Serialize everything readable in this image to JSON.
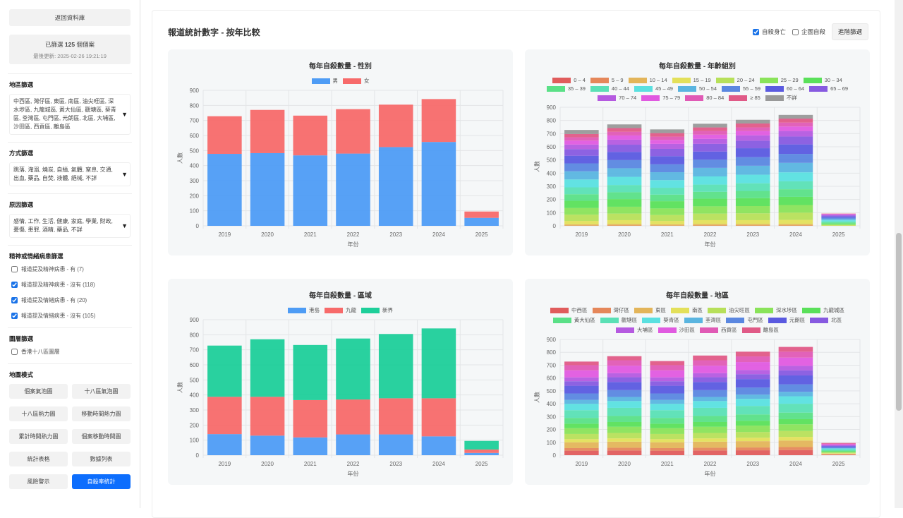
{
  "sidebar": {
    "back_button": "返回資料庫",
    "filtered_prefix": "已篩選 ",
    "filtered_count": "125",
    "filtered_suffix": " 個個案",
    "last_updated": "最後更新: 2025-02-26 19:21:19",
    "district_filter": {
      "title": "地區篩選",
      "value": "中西區, 灣仔區, 東區, 南區, 油尖旺區, 深水埗區, 九龍城區, 黃大仙區, 觀塘區, 葵青區, 荃灣區, 屯門區, 元朗區, 北區, 大埔區, 沙田區, 西貢區, 離島區"
    },
    "method_filter": {
      "title": "方式篩選",
      "value": "跳落, 淹溺, 燒炭, 自縊, 氣體, 窒息, 交通, 出血, 藥品, 自焚, 液體, 絕械, 不詳"
    },
    "reason_filter": {
      "title": "原因篩選",
      "value": "感情, 工作, 生活, 健康, 家庭, 學業, 財政, 憂傷, 患罪, 酒精, 藥品, 不詳"
    },
    "mental_filter": {
      "title": "精神或情緒病患篩選",
      "options": [
        {
          "label": "報道提及精神病患 - 有 (7)",
          "checked": true
        },
        {
          "label": "報道提及精神病患 - 沒有 (118)",
          "checked": true
        },
        {
          "label": "報道提及情緒病患 - 有 (20)",
          "checked": true
        },
        {
          "label": "報道提及情緒病患 - 沒有 (105)",
          "checked": true
        }
      ]
    },
    "layer_filter": {
      "title": "圖層篩選",
      "option": "香港十八區圖層"
    },
    "map_mode": {
      "title": "地圖模式",
      "buttons": [
        "個案氣泡圖",
        "十八區氣泡圖",
        "十八區熱力圖",
        "移動時間熱力圖",
        "累計時間熱力圖",
        "個案移動時間圖",
        "統計表格",
        "數據列表",
        "風險警示",
        "自殺率統計"
      ],
      "active": "自殺率統計"
    }
  },
  "header": {
    "title": "報道統計數字 - 按年比較",
    "cb_suicide": "自殺身亡",
    "cb_attempt": "企圖自殺",
    "advanced_button": "進階篩選"
  },
  "chart_data": [
    {
      "type": "bar",
      "stacked": true,
      "title": "每年自殺數量 - 性別",
      "xlabel": "年份",
      "ylabel": "人數",
      "ylim": [
        0,
        900
      ],
      "legend": "top",
      "categories": [
        "2019",
        "2020",
        "2021",
        "2022",
        "2023",
        "2024",
        "2025"
      ],
      "series": [
        {
          "name": "男",
          "color": "#4e9cf5",
          "values": [
            478,
            483,
            468,
            480,
            523,
            557,
            53
          ]
        },
        {
          "name": "女",
          "color": "#f76a6a",
          "values": [
            250,
            287,
            264,
            295,
            282,
            285,
            42
          ]
        }
      ]
    },
    {
      "type": "bar",
      "stacked": true,
      "title": "每年自殺數量 - 年齡組別",
      "xlabel": "年份",
      "ylabel": "人數",
      "ylim": [
        0,
        900
      ],
      "legend": "top",
      "categories": [
        "2019",
        "2020",
        "2021",
        "2022",
        "2023",
        "2024",
        "2025"
      ],
      "series": [
        {
          "name": "0 – 4",
          "color": "#e05c5c",
          "values": [
            0,
            0,
            0,
            0,
            0,
            0,
            0
          ]
        },
        {
          "name": "5 – 9",
          "color": "#e5875a",
          "values": [
            2,
            3,
            2,
            3,
            3,
            3,
            0
          ]
        },
        {
          "name": "10 – 14",
          "color": "#e3b55a",
          "values": [
            10,
            12,
            10,
            12,
            12,
            12,
            0
          ]
        },
        {
          "name": "15 – 19",
          "color": "#e3e05a",
          "values": [
            25,
            28,
            25,
            28,
            28,
            30,
            2
          ]
        },
        {
          "name": "20 – 24",
          "color": "#b7e05a",
          "values": [
            48,
            50,
            45,
            50,
            52,
            55,
            4
          ]
        },
        {
          "name": "25 – 29",
          "color": "#8ae35a",
          "values": [
            50,
            52,
            50,
            55,
            55,
            58,
            6
          ]
        },
        {
          "name": "30 – 34",
          "color": "#5ae05a",
          "values": [
            55,
            58,
            55,
            58,
            60,
            62,
            6
          ]
        },
        {
          "name": "35 – 39",
          "color": "#5ae087",
          "values": [
            50,
            52,
            50,
            52,
            55,
            58,
            8
          ]
        },
        {
          "name": "40 – 44",
          "color": "#5ae0b5",
          "values": [
            52,
            55,
            52,
            55,
            58,
            60,
            8
          ]
        },
        {
          "name": "45 – 49",
          "color": "#5ae0e0",
          "values": [
            60,
            62,
            58,
            62,
            65,
            68,
            8
          ]
        },
        {
          "name": "50 – 54",
          "color": "#5ab5e0",
          "values": [
            62,
            65,
            60,
            65,
            68,
            72,
            10
          ]
        },
        {
          "name": "55 – 59",
          "color": "#5a87e0",
          "values": [
            60,
            62,
            60,
            62,
            65,
            68,
            10
          ]
        },
        {
          "name": "60 – 64",
          "color": "#5a5ae0",
          "values": [
            58,
            62,
            62,
            62,
            68,
            72,
            8
          ]
        },
        {
          "name": "65 – 69",
          "color": "#875ae0",
          "values": [
            50,
            55,
            55,
            58,
            58,
            60,
            8
          ]
        },
        {
          "name": "70 – 74",
          "color": "#b55ae0",
          "values": [
            35,
            38,
            38,
            38,
            40,
            42,
            6
          ]
        },
        {
          "name": "75 – 79",
          "color": "#e05ae0",
          "values": [
            30,
            32,
            30,
            32,
            32,
            34,
            4
          ]
        },
        {
          "name": "80 – 84",
          "color": "#e05ab5",
          "values": [
            25,
            28,
            25,
            28,
            28,
            30,
            3
          ]
        },
        {
          "name": "≥ 85",
          "color": "#e05a87",
          "values": [
            25,
            28,
            27,
            27,
            30,
            30,
            2
          ]
        },
        {
          "name": "不詳",
          "color": "#999999",
          "values": [
            31,
            28,
            28,
            28,
            28,
            28,
            0
          ]
        }
      ]
    },
    {
      "type": "bar",
      "stacked": true,
      "title": "每年自殺數量 - 區域",
      "xlabel": "年份",
      "ylabel": "人數",
      "ylim": [
        0,
        900
      ],
      "legend": "top",
      "categories": [
        "2019",
        "2020",
        "2021",
        "2022",
        "2023",
        "2024",
        "2025"
      ],
      "series": [
        {
          "name": "港島",
          "color": "#4e9cf5",
          "values": [
            140,
            130,
            118,
            138,
            138,
            125,
            15
          ]
        },
        {
          "name": "九龍",
          "color": "#f76a6a",
          "values": [
            248,
            258,
            248,
            232,
            240,
            253,
            23
          ]
        },
        {
          "name": "新界",
          "color": "#1ecf9a",
          "values": [
            340,
            382,
            366,
            405,
            427,
            464,
            57
          ]
        }
      ]
    },
    {
      "type": "bar",
      "stacked": true,
      "title": "每年自殺數量 - 地區",
      "xlabel": "年份",
      "ylabel": "人數",
      "ylim": [
        0,
        900
      ],
      "legend": "top",
      "categories": [
        "2019",
        "2020",
        "2021",
        "2022",
        "2023",
        "2024",
        "2025"
      ],
      "series": [
        {
          "name": "中西區",
          "color": "#e05c5c",
          "values": [
            35,
            37,
            35,
            37,
            38,
            40,
            4
          ]
        },
        {
          "name": "灣仔區",
          "color": "#e5875a",
          "values": [
            20,
            21,
            20,
            21,
            22,
            23,
            3
          ]
        },
        {
          "name": "東區",
          "color": "#e3b55a",
          "values": [
            45,
            47,
            45,
            47,
            49,
            51,
            5
          ]
        },
        {
          "name": "南區",
          "color": "#e3e05a",
          "values": [
            25,
            26,
            25,
            26,
            27,
            28,
            3
          ]
        },
        {
          "name": "油尖旺區",
          "color": "#b7e05a",
          "values": [
            40,
            42,
            40,
            42,
            44,
            46,
            5
          ]
        },
        {
          "name": "深水埗區",
          "color": "#8ae35a",
          "values": [
            45,
            48,
            45,
            48,
            50,
            52,
            6
          ]
        },
        {
          "name": "九龍城區",
          "color": "#5ae05a",
          "values": [
            35,
            37,
            35,
            37,
            38,
            40,
            4
          ]
        },
        {
          "name": "黃大仙區",
          "color": "#5ae087",
          "values": [
            45,
            47,
            45,
            47,
            49,
            51,
            6
          ]
        },
        {
          "name": "觀塘區",
          "color": "#5ae0b5",
          "values": [
            60,
            63,
            60,
            63,
            66,
            69,
            8
          ]
        },
        {
          "name": "葵青區",
          "color": "#5ae0e0",
          "values": [
            50,
            53,
            50,
            53,
            55,
            58,
            7
          ]
        },
        {
          "name": "荃灣區",
          "color": "#5ab5e0",
          "values": [
            30,
            32,
            30,
            32,
            33,
            35,
            4
          ]
        },
        {
          "name": "屯門區",
          "color": "#5a87e0",
          "values": [
            50,
            53,
            50,
            53,
            55,
            58,
            6
          ]
        },
        {
          "name": "元朗區",
          "color": "#5a5ae0",
          "values": [
            60,
            63,
            60,
            63,
            66,
            69,
            8
          ]
        },
        {
          "name": "北區",
          "color": "#875ae0",
          "values": [
            35,
            37,
            35,
            37,
            38,
            40,
            5
          ]
        },
        {
          "name": "大埔區",
          "color": "#b55ae0",
          "values": [
            30,
            32,
            30,
            32,
            33,
            35,
            4
          ]
        },
        {
          "name": "沙田區",
          "color": "#e05ae0",
          "values": [
            55,
            58,
            55,
            58,
            61,
            64,
            7
          ]
        },
        {
          "name": "西貢區",
          "color": "#e05ab5",
          "values": [
            40,
            42,
            40,
            42,
            44,
            46,
            5
          ]
        },
        {
          "name": "離島區",
          "color": "#e05a87",
          "values": [
            28,
            32,
            32,
            37,
            37,
            37,
            5
          ]
        }
      ]
    }
  ]
}
